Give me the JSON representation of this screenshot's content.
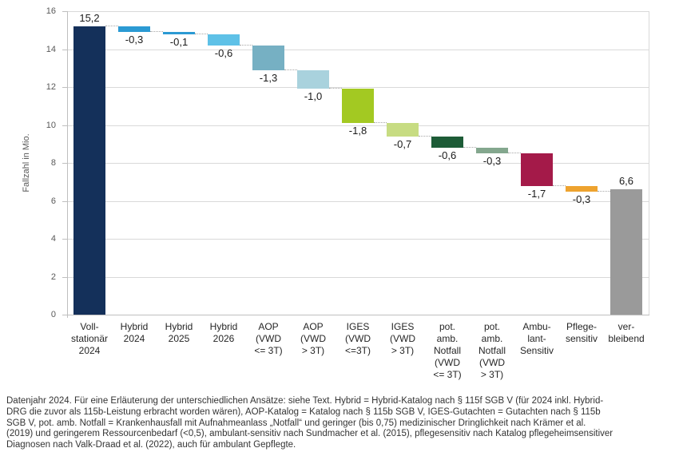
{
  "chart_data": {
    "type": "bar",
    "subtype": "waterfall",
    "title": "",
    "xlabel": "",
    "ylabel": "Fallzahl in Mio.",
    "ylim": [
      0,
      16
    ],
    "ytick_step": 2,
    "grid": "horizontal",
    "legend": "none",
    "bars": [
      {
        "category": "Voll-\nstationär\n2024",
        "start": 0.0,
        "end": 15.2,
        "label": "15,2",
        "label_position": "above",
        "color": "#14305a"
      },
      {
        "category": "Hybrid\n2024",
        "start": 15.2,
        "end": 14.9,
        "label": "-0,3",
        "label_position": "below",
        "color": "#2b9ad3"
      },
      {
        "category": "Hybrid\n2025",
        "start": 14.9,
        "end": 14.8,
        "label": "-0,1",
        "label_position": "below",
        "color": "#2b9ad3"
      },
      {
        "category": "Hybrid\n2026",
        "start": 14.8,
        "end": 14.2,
        "label": "-0,6",
        "label_position": "below",
        "color": "#5ec1e7"
      },
      {
        "category": "AOP\n(VWD\n<= 3T)",
        "start": 14.2,
        "end": 12.9,
        "label": "-1,3",
        "label_position": "below",
        "color": "#76b0c3"
      },
      {
        "category": "AOP\n(VWD\n> 3T)",
        "start": 12.9,
        "end": 11.9,
        "label": "-1,0",
        "label_position": "below",
        "color": "#a9d2dd"
      },
      {
        "category": "IGES\n(VWD\n<=3T)",
        "start": 11.9,
        "end": 10.1,
        "label": "-1,8",
        "label_position": "below",
        "color": "#a3c922"
      },
      {
        "category": "IGES\n(VWD\n> 3T)",
        "start": 10.1,
        "end": 9.4,
        "label": "-0,7",
        "label_position": "below",
        "color": "#c7dc82"
      },
      {
        "category": "pot.\namb.\nNotfall\n(VWD\n<= 3T)",
        "start": 9.4,
        "end": 8.8,
        "label": "-0,6",
        "label_position": "below",
        "color": "#1d5c37"
      },
      {
        "category": "pot.\namb.\nNotfall\n(VWD\n> 3T)",
        "start": 8.8,
        "end": 8.5,
        "label": "-0,3",
        "label_position": "below",
        "color": "#84a78e"
      },
      {
        "category": "Ambu-\nlant-\nSensitiv",
        "start": 8.5,
        "end": 6.8,
        "label": "-1,7",
        "label_position": "below",
        "color": "#a41a49"
      },
      {
        "category": "Pflege-\nsensitiv",
        "start": 6.8,
        "end": 6.5,
        "label": "-0,3",
        "label_position": "below",
        "color": "#eea32f"
      },
      {
        "category": "ver-\nbleibend",
        "start": 0.0,
        "end": 6.6,
        "label": "6,6",
        "label_position": "above",
        "color": "#9a9a9a"
      }
    ]
  },
  "footnote": {
    "lines": [
      "Datenjahr 2024. Für eine Erläuterung der unterschiedlichen Ansätze: siehe Text. Hybrid = Hybrid-Katalog nach § 115f SGB V (für 2024 inkl. Hybrid-",
      "DRG die zuvor als 115b-Leistung erbracht worden wären), AOP-Katalog = Katalog nach § 115b SGB V, IGES-Gutachten = Gutachten nach § 115b",
      "SGB V, pot. amb. Notfall = Krankenhausfall mit Aufnahmeanlass „Notfall“ und geringer (bis 0,75) medizinischer Dringlichkeit nach Krämer et al.",
      "(2019) und geringerem Ressourcenbedarf (<0,5), ambulant-sensitiv nach Sundmacher et al. (2015), pflegesensitiv nach Katalog pflegeheimsensitiver",
      "Diagnosen nach Valk-Draad et al. (2022), auch für ambulant Gepflegte."
    ]
  },
  "colors": {
    "background": "#ffffff",
    "grid": "#d9d9d9",
    "axis": "#bfbfbf",
    "tick_label": "#595959",
    "value_label": "#1a1a1a",
    "category_label": "#262626",
    "connector": "#a6a6a6",
    "footnote_text": "#333333"
  }
}
